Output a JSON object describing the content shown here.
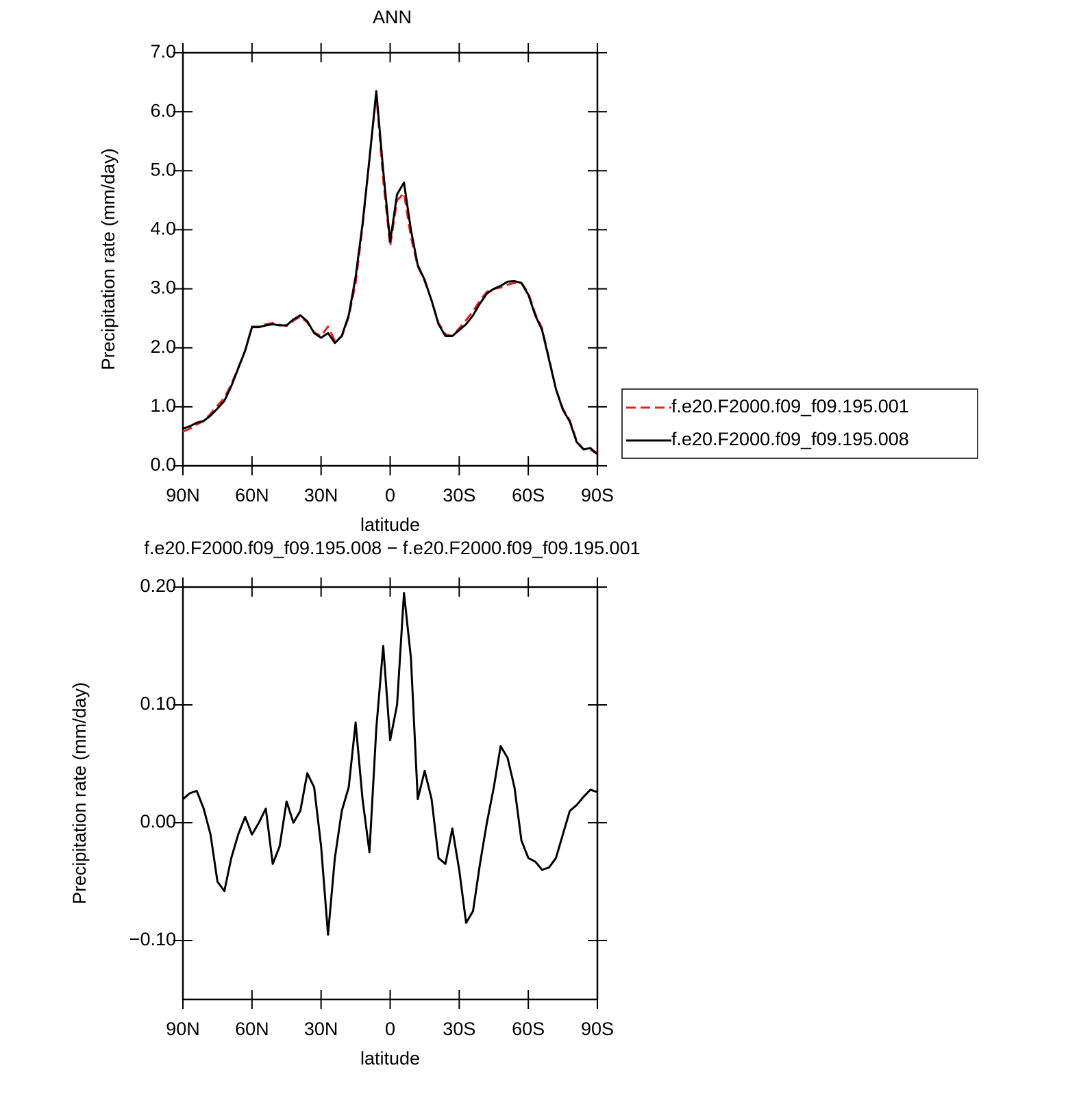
{
  "chart_data": [
    {
      "type": "line",
      "title": "ANN",
      "ylabel": "Precipitation rate (mm/day)",
      "xlabel": "latitude",
      "x": [
        90,
        87,
        84,
        81,
        78,
        75,
        72,
        69,
        66,
        63,
        60,
        57,
        54,
        51,
        48,
        45,
        42,
        39,
        36,
        33,
        30,
        27,
        24,
        21,
        18,
        15,
        12,
        9,
        6,
        3,
        0,
        -3,
        -6,
        -9,
        -12,
        -15,
        -18,
        -21,
        -24,
        -27,
        -30,
        -33,
        -36,
        -39,
        -42,
        -45,
        -48,
        -51,
        -54,
        -57,
        -60,
        -63,
        -66,
        -69,
        -72,
        -75,
        -78,
        -81,
        -84,
        -87,
        -90
      ],
      "series": [
        {
          "name": "f.e20.F2000.f09_f09.195.001",
          "color": "#e8201c",
          "dashed": true,
          "values": [
            0.58,
            0.63,
            0.7,
            0.76,
            0.88,
            1.02,
            1.15,
            1.38,
            1.66,
            1.95,
            2.36,
            2.36,
            2.4,
            2.42,
            2.39,
            2.37,
            2.46,
            2.53,
            2.43,
            2.26,
            2.2,
            2.36,
            2.12,
            2.19,
            2.52,
            3.1,
            4.05,
            5.2,
            6.3,
            4.85,
            3.72,
            4.5,
            4.62,
            3.88,
            3.38,
            3.13,
            2.8,
            2.42,
            2.23,
            2.2,
            2.33,
            2.47,
            2.62,
            2.8,
            2.95,
            3.0,
            3.02,
            3.07,
            3.1,
            3.1,
            2.93,
            2.58,
            2.33,
            1.82,
            1.3,
            0.97,
            0.77,
            0.42,
            0.28,
            0.27,
            0.2
          ]
        },
        {
          "name": "f.e20.F2000.f09_f09.195.008",
          "color": "#000000",
          "dashed": false,
          "values": [
            0.63,
            0.67,
            0.73,
            0.76,
            0.85,
            0.97,
            1.1,
            1.35,
            1.65,
            1.95,
            2.35,
            2.35,
            2.38,
            2.4,
            2.38,
            2.38,
            2.48,
            2.55,
            2.45,
            2.25,
            2.17,
            2.25,
            2.08,
            2.2,
            2.55,
            3.2,
            4.1,
            5.2,
            6.35,
            5.0,
            3.8,
            4.6,
            4.8,
            4.0,
            3.4,
            3.15,
            2.8,
            2.4,
            2.2,
            2.2,
            2.3,
            2.4,
            2.55,
            2.75,
            2.92,
            3.0,
            3.05,
            3.12,
            3.13,
            3.1,
            2.9,
            2.55,
            2.3,
            1.8,
            1.3,
            0.95,
            0.75,
            0.4,
            0.28,
            0.3,
            0.2
          ]
        }
      ],
      "xlim": [
        90,
        -90
      ],
      "xticks": [
        {
          "value": 90,
          "label": "90N"
        },
        {
          "value": 60,
          "label": "60N"
        },
        {
          "value": 30,
          "label": "30N"
        },
        0,
        {
          "value": -30,
          "label": "30S"
        },
        {
          "value": -60,
          "label": "60S"
        },
        {
          "value": -90,
          "label": "90S"
        }
      ],
      "ylim": [
        0,
        7
      ],
      "yticks": [
        {
          "value": 0,
          "label": "0.0"
        },
        {
          "value": 1,
          "label": "1.0"
        },
        {
          "value": 2,
          "label": "2.0"
        },
        {
          "value": 3,
          "label": "3.0"
        },
        {
          "value": 4,
          "label": "4.0"
        },
        {
          "value": 5,
          "label": "5.0"
        },
        {
          "value": 6,
          "label": "6.0"
        },
        {
          "value": 7,
          "label": "7.0"
        }
      ],
      "legend": "outside-right"
    },
    {
      "type": "line",
      "title": "f.e20.F2000.f09_f09.195.008 − f.e20.F2000.f09_f09.195.001",
      "ylabel": "Precipitation rate (mm/day)",
      "xlabel": "latitude",
      "x": [
        90,
        87,
        84,
        81,
        78,
        75,
        72,
        69,
        66,
        63,
        60,
        57,
        54,
        51,
        48,
        45,
        42,
        39,
        36,
        33,
        30,
        27,
        24,
        21,
        18,
        15,
        12,
        9,
        6,
        3,
        0,
        -3,
        -6,
        -9,
        -12,
        -15,
        -18,
        -21,
        -24,
        -27,
        -30,
        -33,
        -36,
        -39,
        -42,
        -45,
        -48,
        -51,
        -54,
        -57,
        -60,
        -63,
        -66,
        -69,
        -72,
        -75,
        -78,
        -81,
        -84,
        -87,
        -90
      ],
      "color": "#000000",
      "values": [
        0.02,
        0.025,
        0.027,
        0.012,
        -0.01,
        -0.05,
        -0.058,
        -0.03,
        -0.01,
        0.005,
        -0.01,
        0.0,
        0.012,
        -0.035,
        -0.02,
        0.018,
        0.0,
        0.01,
        0.042,
        0.03,
        -0.02,
        -0.095,
        -0.03,
        0.01,
        0.03,
        0.085,
        0.02,
        -0.025,
        0.08,
        0.15,
        0.07,
        0.1,
        0.195,
        0.14,
        0.02,
        0.044,
        0.02,
        -0.03,
        -0.035,
        -0.005,
        -0.04,
        -0.085,
        -0.075,
        -0.035,
        0.0,
        0.03,
        0.065,
        0.055,
        0.03,
        -0.015,
        -0.03,
        -0.033,
        -0.04,
        -0.038,
        -0.03,
        -0.01,
        0.01,
        0.015,
        0.022,
        0.028,
        0.026
      ],
      "xlim": [
        90,
        -90
      ],
      "xticks": [
        {
          "value": 90,
          "label": "90N"
        },
        {
          "value": 60,
          "label": "60N"
        },
        {
          "value": 30,
          "label": "30N"
        },
        0,
        {
          "value": -30,
          "label": "30S"
        },
        {
          "value": -60,
          "label": "60S"
        },
        {
          "value": -90,
          "label": "90S"
        }
      ],
      "ylim": [
        -0.15,
        0.2
      ],
      "yticks": [
        {
          "value": -0.1,
          "label": "−0.10"
        },
        {
          "value": 0,
          "label": "0.00"
        },
        {
          "value": 0.1,
          "label": "0.10"
        },
        {
          "value": 0.2,
          "label": "0.20"
        }
      ]
    }
  ]
}
